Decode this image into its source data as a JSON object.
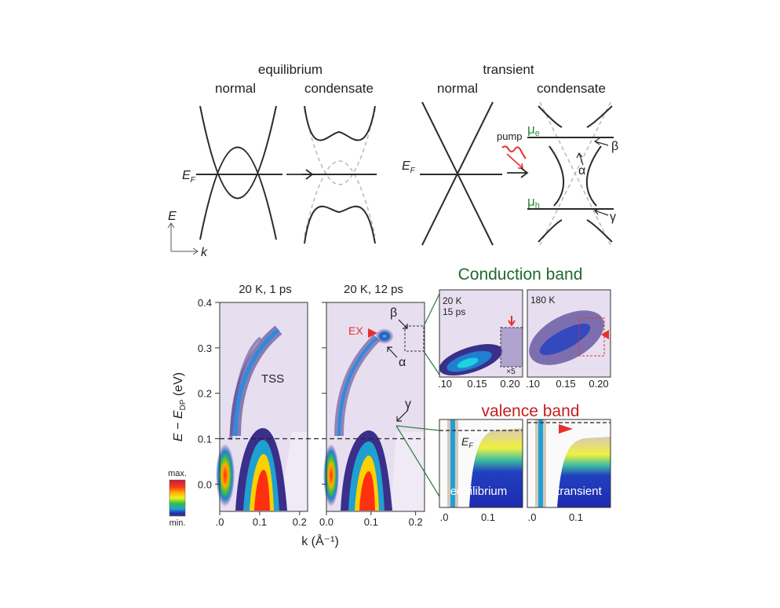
{
  "schematic": {
    "equilibrium_title": "equilibrium",
    "transient_title": "transient",
    "normal_label": "normal",
    "condensate_label": "condensate",
    "ef_main": "E",
    "ef_sub": "F",
    "pump_label": "pump",
    "mu_main": "μ",
    "mu_e_sub": "e",
    "mu_h_sub": "h",
    "beta": "β",
    "alpha": "α",
    "gamma": "γ",
    "axis_e": "E",
    "axis_k": "k",
    "colors": {
      "band": "#2b2b2b",
      "dashed": "#b8b8b8",
      "mu": "#2e8b3a",
      "pump": "#e53030"
    }
  },
  "arpes": {
    "panel1_title": "20 K, 1 ps",
    "panel2_title": "20 K, 12 ps",
    "tss_label": "TSS",
    "ex_label": "EX",
    "beta": "β",
    "alpha": "α",
    "gamma": "γ",
    "y_label_main": "E − E",
    "y_label_sub": "DP",
    "y_label_unit": " (eV)",
    "x_label": "k (Å⁻¹)",
    "y_ticks": [
      "0.4",
      "0.3",
      "0.2",
      "0.1",
      "0.0"
    ],
    "y_tick_values": [
      0.4,
      0.3,
      0.2,
      0.1,
      0.0
    ],
    "x_ticks": [
      ".0",
      "0.1",
      "0.2"
    ],
    "x_ticks_p2": [
      "0.0",
      "0.1",
      "0.2"
    ],
    "x_tick_values": [
      0.0,
      0.1,
      0.2
    ],
    "colorbar_max": "max.",
    "colorbar_min": "min.",
    "dashed_level": 0.1
  },
  "insets": {
    "conduction_title": "Conduction band",
    "valence_title": "valence band",
    "cb_left_label_1": "20 K",
    "cb_left_label_2": "15 ps",
    "cb_right_label": "180 K",
    "x5_label": "×5",
    "cb_x_ticks_left": [
      ".10",
      "0.15",
      "0.20"
    ],
    "cb_x_ticks_right": [
      ".10",
      "0.15",
      "0.20"
    ],
    "vb_left_label": "equilibrium",
    "vb_right_label": "transient",
    "vb_ef_main": "E",
    "vb_ef_sub": "F",
    "vb_x_ticks": [
      ".0",
      "0.1"
    ],
    "colors": {
      "conduction": "#1f6b2e",
      "valence": "#c41e1e"
    }
  }
}
